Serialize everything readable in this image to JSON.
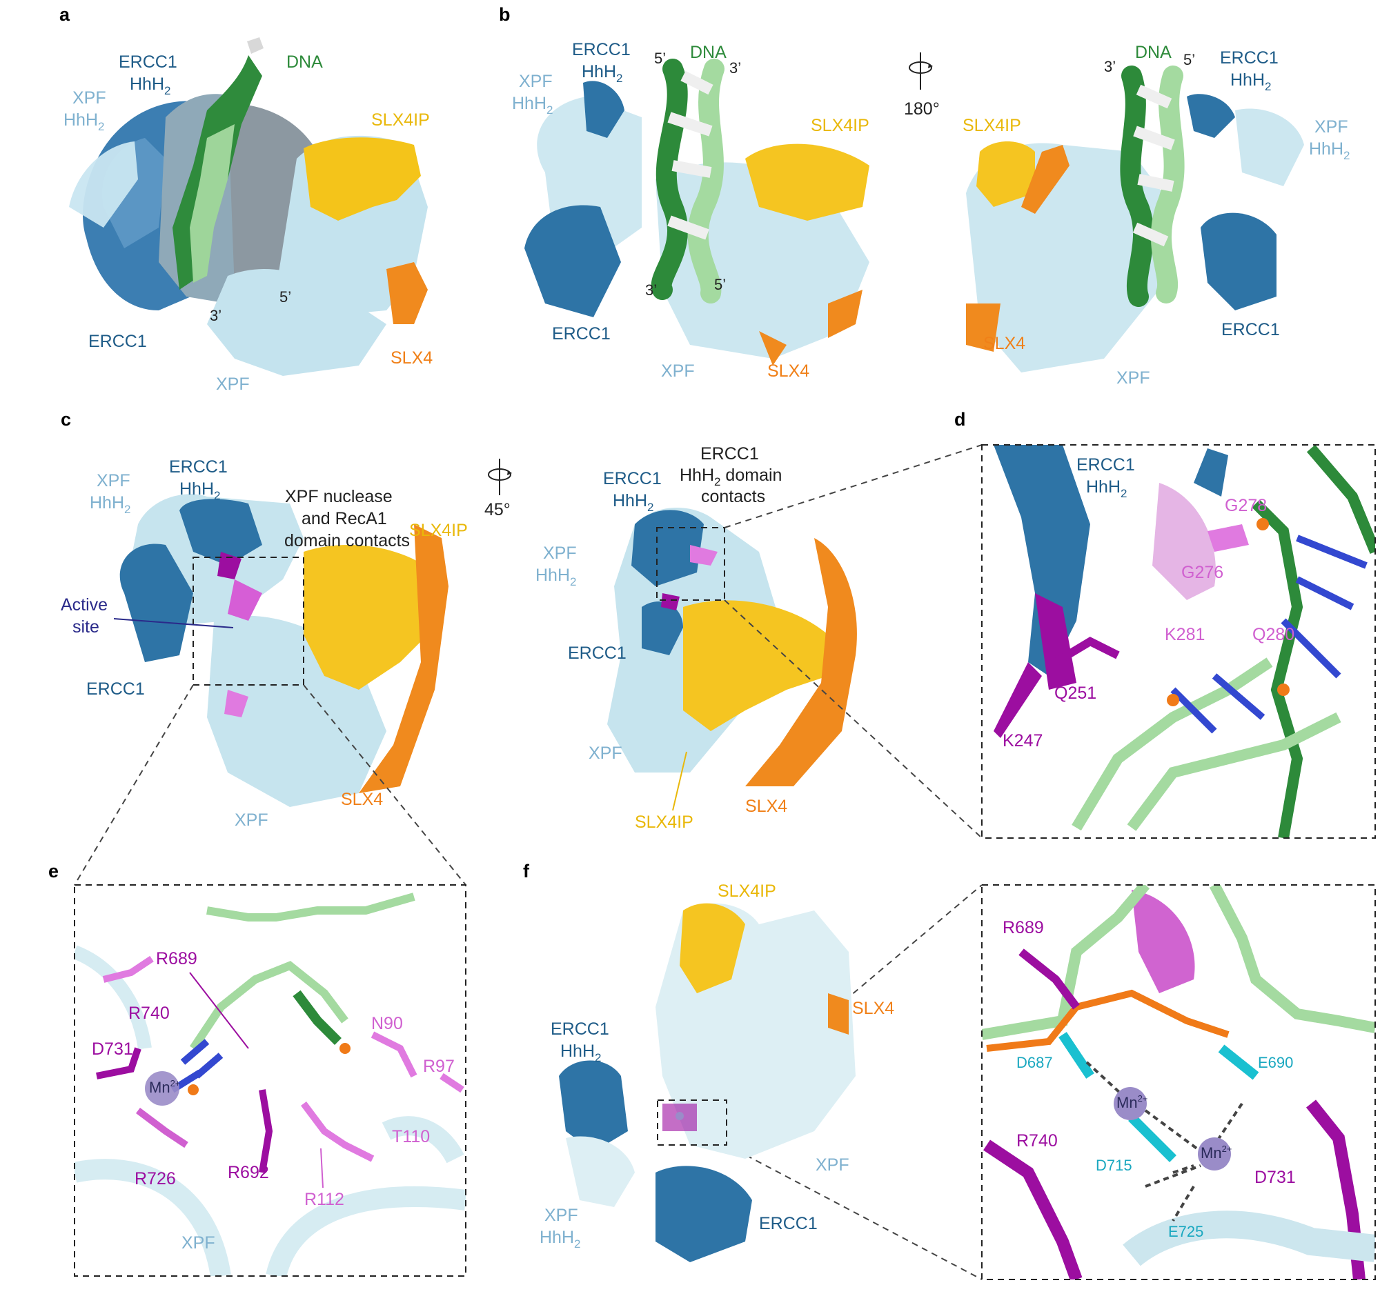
{
  "colors": {
    "ercc1": "#2E74A6",
    "ercc1_dark": "#1F5C88",
    "xpf": "#C6E4EE",
    "xpf_text": "#7FB1CF",
    "dna_dark": "#2D8A3A",
    "dna_light": "#9ED59A",
    "slx4ip": "#F2C01A",
    "slx4": "#F08018",
    "contact_dark": "#9C0EA0",
    "contact_light": "#E07AE0",
    "residue_cyan": "#1AA8C0",
    "mn": "#9A8CC8"
  },
  "panel_labels": {
    "a": "a",
    "b": "b",
    "c": "c",
    "d": "d",
    "e": "e",
    "f": "f"
  },
  "panel_a": {
    "dna": "DNA",
    "ercc1_hhh2_line1": "ERCC1",
    "ercc1_hhh2_line2": "HhH",
    "xpf_hhh2_line1": "XPF",
    "xpf_hhh2_line2": "HhH",
    "sub2": "2",
    "slx4ip": "SLX4IP",
    "ercc1": "ERCC1",
    "xpf": "XPF",
    "slx4": "SLX4",
    "end3": "3’",
    "end5": "5’"
  },
  "panel_b": {
    "dna": "DNA",
    "ercc1_hhh2_line1": "ERCC1",
    "ercc1_hhh2_line2": "HhH",
    "xpf_hhh2_line1": "XPF",
    "xpf_hhh2_line2": "HhH",
    "sub2": "2",
    "slx4ip": "SLX4IP",
    "ercc1": "ERCC1",
    "xpf": "XPF",
    "slx4": "SLX4",
    "end3": "3’",
    "end5": "5’",
    "rotation": "180°"
  },
  "panel_c": {
    "ercc1_hhh2_line1": "ERCC1",
    "ercc1_hhh2_line2": "HhH",
    "xpf_hhh2_line1": "XPF",
    "xpf_hhh2_line2": "HhH",
    "sub2": "2",
    "contacts_left_line1": "XPF nuclease",
    "contacts_left_line2": "and RecA1",
    "contacts_left_line3": "domain contacts",
    "contacts_right_line1": "ERCC1",
    "contacts_right_line2": "HhH",
    "contacts_right_line2b": " domain",
    "contacts_right_line3": "contacts",
    "active_site_line1": "Active",
    "active_site_line2": "site",
    "slx4ip": "SLX4IP",
    "ercc1": "ERCC1",
    "xpf": "XPF",
    "slx4": "SLX4",
    "rotation": "45°"
  },
  "panel_d": {
    "ercc1_hhh2_line1": "ERCC1",
    "ercc1_hhh2_line2": "HhH",
    "sub2": "2",
    "residues": [
      "G278",
      "G276",
      "K281",
      "Q280",
      "Q251",
      "K247"
    ]
  },
  "panel_e": {
    "residues": [
      "R689",
      "R740",
      "D731",
      "N90",
      "R97",
      "T110",
      "R726",
      "R692",
      "R112"
    ],
    "mn": "Mn",
    "mn_charge": "2+",
    "xpf": "XPF"
  },
  "panel_f": {
    "slx4ip": "SLX4IP",
    "slx4": "SLX4",
    "ercc1_hhh2_line1": "ERCC1",
    "ercc1_hhh2_line2": "HhH",
    "xpf_hhh2_line1": "XPF",
    "xpf_hhh2_line2": "HhH",
    "sub2": "2",
    "xpf": "XPF",
    "ercc1": "ERCC1",
    "residues": [
      "R689",
      "D687",
      "E690",
      "R740",
      "D715",
      "D731",
      "E725"
    ],
    "mn": "Mn",
    "mn_charge": "2+"
  }
}
